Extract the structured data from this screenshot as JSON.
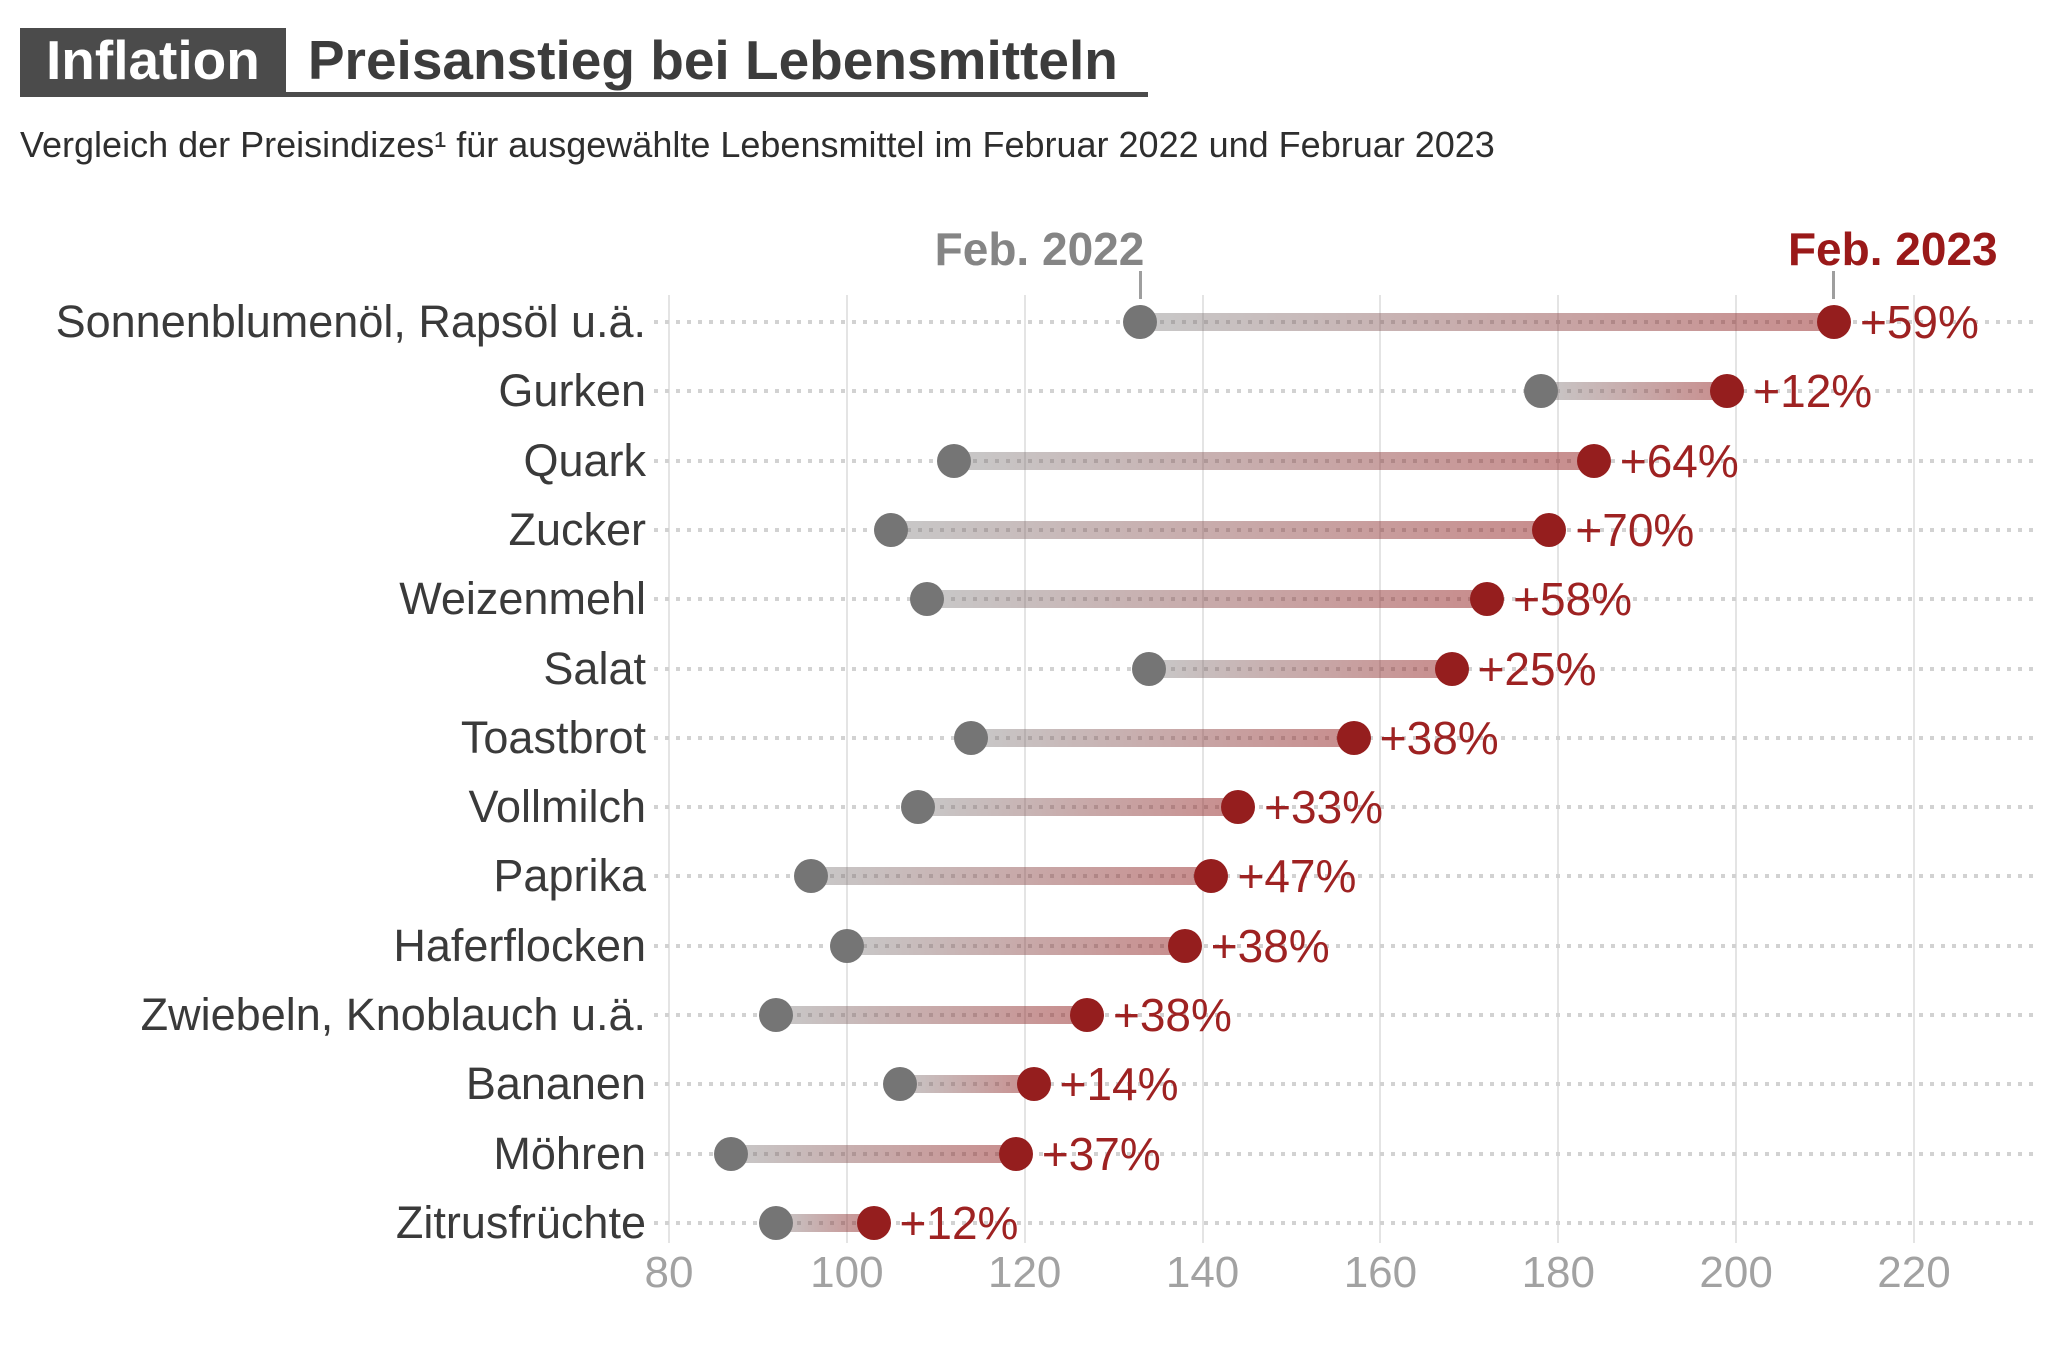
{
  "header": {
    "badge": "Inflation",
    "title": "Preisanstieg bei Lebensmitteln",
    "subtitle": "Vergleich der Preisindizes¹ für ausgewählte Lebensmittel im Februar 2022 und Februar 2023"
  },
  "legend": {
    "from_label": "Feb. 2022",
    "to_label": "Feb. 2023"
  },
  "colors": {
    "from_dot": "#757575",
    "to_dot": "#951e1e",
    "pct_label": "#9e2222",
    "legend_from": "#858585",
    "legend_to": "#9a1919",
    "bar_from": "rgba(118,118,118,0.40)",
    "bar_to": "rgba(145,28,28,0.50)"
  },
  "chart_data": {
    "type": "dumbbell",
    "title": "Preisanstieg bei Lebensmitteln",
    "x_axis": {
      "min": 80,
      "max": 220,
      "ticks": [
        80,
        100,
        120,
        140,
        160,
        180,
        200,
        220
      ]
    },
    "series_labels": [
      "Feb. 2022",
      "Feb. 2023"
    ],
    "grid": true,
    "rows": [
      {
        "label": "Sonnenblumenöl, Rapsöl u.ä.",
        "feb2022": 133,
        "feb2023": 211,
        "change": "+59%"
      },
      {
        "label": "Gurken",
        "feb2022": 178,
        "feb2023": 199,
        "change": "+12%"
      },
      {
        "label": "Quark",
        "feb2022": 112,
        "feb2023": 184,
        "change": "+64%"
      },
      {
        "label": "Zucker",
        "feb2022": 105,
        "feb2023": 179,
        "change": "+70%"
      },
      {
        "label": "Weizenmehl",
        "feb2022": 109,
        "feb2023": 172,
        "change": "+58%"
      },
      {
        "label": "Salat",
        "feb2022": 134,
        "feb2023": 168,
        "change": "+25%"
      },
      {
        "label": "Toastbrot",
        "feb2022": 114,
        "feb2023": 157,
        "change": "+38%"
      },
      {
        "label": "Vollmilch",
        "feb2022": 108,
        "feb2023": 144,
        "change": "+33%"
      },
      {
        "label": "Paprika",
        "feb2022": 96,
        "feb2023": 141,
        "change": "+47%"
      },
      {
        "label": "Haferflocken",
        "feb2022": 100,
        "feb2023": 138,
        "change": "+38%"
      },
      {
        "label": "Zwiebeln, Knoblauch u.ä.",
        "feb2022": 92,
        "feb2023": 127,
        "change": "+38%"
      },
      {
        "label": "Bananen",
        "feb2022": 106,
        "feb2023": 121,
        "change": "+14%"
      },
      {
        "label": "Möhren",
        "feb2022": 87,
        "feb2023": 119,
        "change": "+37%"
      },
      {
        "label": "Zitrusfrüchte",
        "feb2022": 92,
        "feb2023": 103,
        "change": "+12%"
      }
    ]
  }
}
